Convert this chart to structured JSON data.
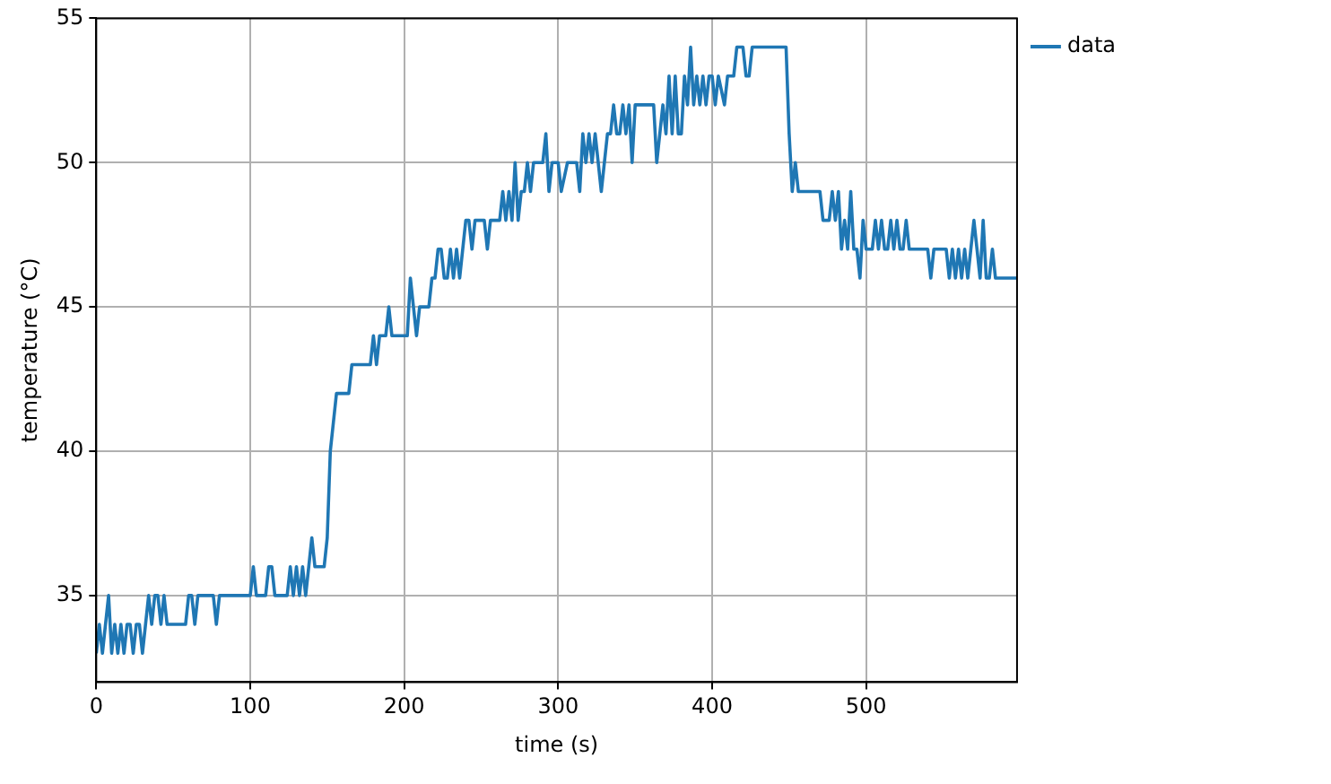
{
  "chart_data": {
    "type": "line",
    "xlabel": "time (s)",
    "ylabel": "temperature (°C)",
    "xlim": [
      0,
      598
    ],
    "ylim": [
      32,
      55
    ],
    "xticks": [
      0,
      100,
      200,
      300,
      400,
      500
    ],
    "yticks": [
      35,
      40,
      45,
      50,
      55
    ],
    "grid": true,
    "legend": "top right",
    "series": [
      {
        "name": "data",
        "color": "#1f77b4",
        "x": [
          0,
          2,
          4,
          6,
          8,
          10,
          12,
          14,
          16,
          18,
          20,
          22,
          24,
          26,
          28,
          30,
          32,
          34,
          36,
          38,
          40,
          42,
          44,
          46,
          52,
          58,
          60,
          62,
          64,
          66,
          76,
          78,
          80,
          100,
          102,
          104,
          110,
          112,
          114,
          116,
          124,
          126,
          128,
          130,
          132,
          134,
          136,
          138,
          140,
          142,
          148,
          150,
          152,
          154,
          156,
          164,
          166,
          178,
          180,
          182,
          184,
          188,
          190,
          192,
          202,
          204,
          206,
          208,
          210,
          216,
          218,
          220,
          222,
          224,
          226,
          228,
          230,
          232,
          234,
          236,
          238,
          240,
          242,
          244,
          246,
          252,
          254,
          256,
          262,
          264,
          266,
          268,
          270,
          272,
          274,
          276,
          278,
          280,
          282,
          284,
          290,
          292,
          294,
          296,
          300,
          302,
          306,
          312,
          314,
          316,
          318,
          320,
          322,
          324,
          326,
          328,
          330,
          332,
          334,
          336,
          338,
          340,
          342,
          344,
          346,
          348,
          350,
          352,
          362,
          364,
          366,
          368,
          370,
          372,
          374,
          376,
          378,
          380,
          382,
          384,
          386,
          388,
          390,
          392,
          394,
          396,
          398,
          400,
          402,
          404,
          408,
          410,
          414,
          416,
          420,
          422,
          424,
          426,
          428,
          448,
          450,
          452,
          454,
          456,
          470,
          472,
          476,
          478,
          480,
          482,
          484,
          486,
          488,
          490,
          492,
          494,
          496,
          498,
          500,
          504,
          506,
          508,
          510,
          512,
          514,
          516,
          518,
          520,
          522,
          524,
          526,
          528,
          540,
          542,
          544,
          552,
          554,
          556,
          558,
          560,
          562,
          564,
          566,
          568,
          570,
          572,
          574,
          576,
          578,
          580,
          582,
          584,
          598
        ],
        "values": [
          33,
          34,
          33,
          34,
          35,
          33,
          34,
          33,
          34,
          33,
          34,
          34,
          33,
          34,
          34,
          33,
          34,
          35,
          34,
          35,
          35,
          34,
          35,
          34,
          34,
          34,
          35,
          35,
          34,
          35,
          35,
          34,
          35,
          35,
          36,
          35,
          35,
          36,
          36,
          35,
          35,
          36,
          35,
          36,
          35,
          36,
          35,
          36,
          37,
          36,
          36,
          37,
          40,
          41,
          42,
          42,
          43,
          43,
          44,
          43,
          44,
          44,
          45,
          44,
          44,
          46,
          45,
          44,
          45,
          45,
          46,
          46,
          47,
          47,
          46,
          46,
          47,
          46,
          47,
          46,
          47,
          48,
          48,
          47,
          48,
          48,
          47,
          48,
          48,
          49,
          48,
          49,
          48,
          50,
          48,
          49,
          49,
          50,
          49,
          50,
          50,
          51,
          49,
          50,
          50,
          49,
          50,
          50,
          49,
          51,
          50,
          51,
          50,
          51,
          50,
          49,
          50,
          51,
          51,
          52,
          51,
          51,
          52,
          51,
          52,
          50,
          52,
          52,
          52,
          50,
          51,
          52,
          51,
          53,
          51,
          53,
          51,
          51,
          53,
          52,
          54,
          52,
          53,
          52,
          53,
          52,
          53,
          53,
          52,
          53,
          52,
          53,
          53,
          54,
          54,
          53,
          53,
          54,
          54,
          54,
          51,
          49,
          50,
          49,
          49,
          48,
          48,
          49,
          48,
          49,
          47,
          48,
          47,
          49,
          47,
          47,
          46,
          48,
          47,
          47,
          48,
          47,
          48,
          47,
          47,
          48,
          47,
          48,
          47,
          47,
          48,
          47,
          47,
          46,
          47,
          47,
          46,
          47,
          46,
          47,
          46,
          47,
          46,
          47,
          48,
          47,
          46,
          48,
          46,
          46,
          47,
          46,
          46
        ]
      }
    ]
  }
}
